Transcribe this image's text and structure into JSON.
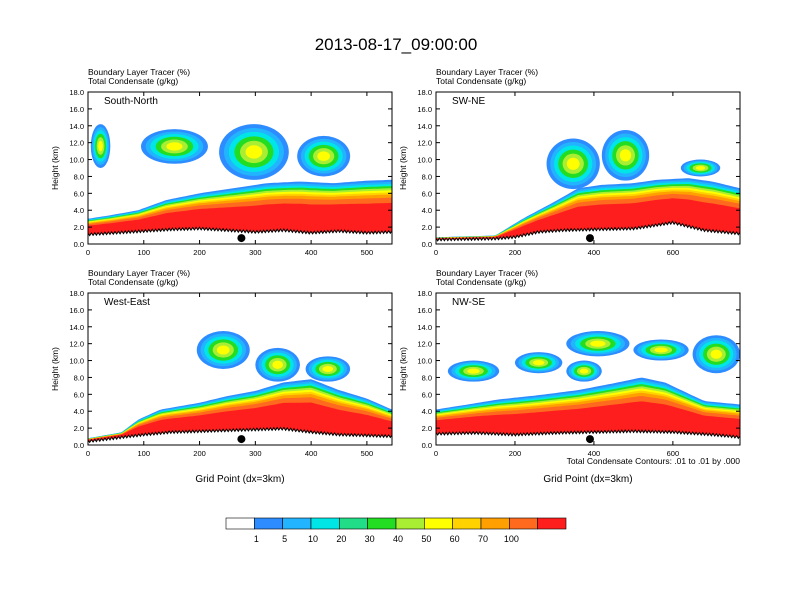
{
  "chart_data": {
    "type": "cross-section",
    "title": "2013-08-17_09:00:00",
    "panel_subtitles": [
      "Boundary Layer Tracer    (%)",
      "Total Condensate    (g/kg)"
    ],
    "ylabel": "Height (km)",
    "xlabel": "Grid Point (dx=3km)",
    "ylim": [
      0,
      18
    ],
    "y_ticks": [
      "0.0",
      "2.0",
      "4.0",
      "6.0",
      "8.0",
      "10.0",
      "12.0",
      "14.0",
      "16.0",
      "18.0"
    ],
    "contour_note": "Total Condensate Contours: .01 to .01 by .000",
    "panels": [
      {
        "name": "South-North",
        "xlim": [
          0,
          545
        ],
        "x_ticks": [
          0,
          100,
          200,
          300,
          400,
          500
        ],
        "marker_x": 275,
        "terrain_km": [
          [
            0,
            1.1
          ],
          [
            50,
            1.3
          ],
          [
            100,
            1.5
          ],
          [
            150,
            1.7
          ],
          [
            200,
            1.8
          ],
          [
            250,
            1.6
          ],
          [
            300,
            1.4
          ],
          [
            350,
            1.6
          ],
          [
            400,
            1.3
          ],
          [
            450,
            1.5
          ],
          [
            500,
            1.3
          ],
          [
            545,
            1.4
          ]
        ],
        "pbl_top_km": [
          [
            0,
            3.0
          ],
          [
            40,
            3.4
          ],
          [
            90,
            4.0
          ],
          [
            140,
            5.2
          ],
          [
            200,
            6.0
          ],
          [
            260,
            6.6
          ],
          [
            320,
            7.2
          ],
          [
            380,
            7.4
          ],
          [
            440,
            7.2
          ],
          [
            500,
            7.5
          ],
          [
            545,
            7.6
          ]
        ],
        "anvils": [
          {
            "x0": 5,
            "x1": 40,
            "zb": 9.0,
            "zt": 14.2
          },
          {
            "x0": 95,
            "x1": 215,
            "zb": 9.5,
            "zt": 13.6
          },
          {
            "x0": 235,
            "x1": 360,
            "zb": 7.6,
            "zt": 14.2
          },
          {
            "x0": 375,
            "x1": 470,
            "zb": 8.0,
            "zt": 12.8
          }
        ]
      },
      {
        "name": "SW-NE",
        "xlim": [
          0,
          770
        ],
        "x_ticks": [
          0,
          200,
          400,
          600
        ],
        "marker_x": 390,
        "terrain_km": [
          [
            0,
            0.5
          ],
          [
            150,
            0.6
          ],
          [
            200,
            0.8
          ],
          [
            260,
            1.4
          ],
          [
            320,
            1.6
          ],
          [
            400,
            1.7
          ],
          [
            500,
            1.8
          ],
          [
            600,
            2.5
          ],
          [
            680,
            1.6
          ],
          [
            770,
            1.2
          ]
        ],
        "pbl_top_km": [
          [
            0,
            0.8
          ],
          [
            150,
            1.0
          ],
          [
            220,
            3.0
          ],
          [
            300,
            5.0
          ],
          [
            360,
            6.6
          ],
          [
            420,
            7.0
          ],
          [
            500,
            7.2
          ],
          [
            560,
            7.6
          ],
          [
            640,
            7.8
          ],
          [
            700,
            7.4
          ],
          [
            770,
            6.6
          ]
        ],
        "anvils": [
          {
            "x0": 280,
            "x1": 415,
            "zb": 6.5,
            "zt": 12.5
          },
          {
            "x0": 420,
            "x1": 540,
            "zb": 7.5,
            "zt": 13.5
          },
          {
            "x0": 620,
            "x1": 720,
            "zb": 8.0,
            "zt": 10.0
          }
        ]
      },
      {
        "name": "West-East",
        "xlim": [
          0,
          545
        ],
        "x_ticks": [
          0,
          100,
          200,
          300,
          400,
          500
        ],
        "marker_x": 275,
        "terrain_km": [
          [
            0,
            0.4
          ],
          [
            50,
            0.8
          ],
          [
            100,
            1.2
          ],
          [
            150,
            1.5
          ],
          [
            200,
            1.6
          ],
          [
            250,
            1.7
          ],
          [
            300,
            1.8
          ],
          [
            350,
            1.9
          ],
          [
            400,
            1.5
          ],
          [
            450,
            1.2
          ],
          [
            500,
            1.1
          ],
          [
            545,
            1.0
          ]
        ],
        "pbl_top_km": [
          [
            0,
            0.8
          ],
          [
            60,
            1.5
          ],
          [
            90,
            3.0
          ],
          [
            130,
            4.2
          ],
          [
            200,
            5.0
          ],
          [
            250,
            5.8
          ],
          [
            300,
            6.4
          ],
          [
            350,
            7.4
          ],
          [
            400,
            7.8
          ],
          [
            450,
            6.5
          ],
          [
            500,
            5.5
          ],
          [
            545,
            4.2
          ]
        ],
        "anvils": [
          {
            "x0": 195,
            "x1": 290,
            "zb": 9.0,
            "zt": 13.5
          },
          {
            "x0": 300,
            "x1": 380,
            "zb": 7.5,
            "zt": 11.5
          },
          {
            "x0": 390,
            "x1": 470,
            "zb": 7.5,
            "zt": 10.5
          }
        ]
      },
      {
        "name": "NW-SE",
        "xlim": [
          0,
          770
        ],
        "x_ticks": [
          0,
          200,
          400,
          600
        ],
        "marker_x": 390,
        "terrain_km": [
          [
            0,
            1.3
          ],
          [
            100,
            1.4
          ],
          [
            200,
            1.2
          ],
          [
            300,
            1.4
          ],
          [
            400,
            1.5
          ],
          [
            500,
            1.6
          ],
          [
            600,
            1.5
          ],
          [
            700,
            1.2
          ],
          [
            770,
            0.9
          ]
        ],
        "pbl_top_km": [
          [
            0,
            4.2
          ],
          [
            80,
            4.8
          ],
          [
            160,
            5.4
          ],
          [
            260,
            5.9
          ],
          [
            360,
            6.5
          ],
          [
            460,
            7.4
          ],
          [
            520,
            8.0
          ],
          [
            580,
            7.4
          ],
          [
            680,
            5.2
          ],
          [
            770,
            4.8
          ]
        ],
        "anvils": [
          {
            "x0": 30,
            "x1": 160,
            "zb": 7.5,
            "zt": 10.0
          },
          {
            "x0": 200,
            "x1": 320,
            "zb": 8.5,
            "zt": 11.0
          },
          {
            "x0": 330,
            "x1": 420,
            "zb": 7.5,
            "zt": 10.0
          },
          {
            "x0": 330,
            "x1": 490,
            "zb": 10.5,
            "zt": 13.5
          },
          {
            "x0": 500,
            "x1": 640,
            "zb": 10.0,
            "zt": 12.5
          },
          {
            "x0": 650,
            "x1": 770,
            "zb": 8.5,
            "zt": 13.0
          }
        ]
      }
    ],
    "colorbar": {
      "levels": [
        "1",
        "5",
        "10",
        "20",
        "30",
        "40",
        "50",
        "60",
        "70",
        "100"
      ],
      "colors": [
        "#ffffff",
        "#2d8cff",
        "#22b4ff",
        "#00e6e6",
        "#22dd88",
        "#22dd22",
        "#aaee33",
        "#ffff00",
        "#ffd200",
        "#ffa000",
        "#ff6a1e",
        "#ff1e1e"
      ]
    }
  }
}
